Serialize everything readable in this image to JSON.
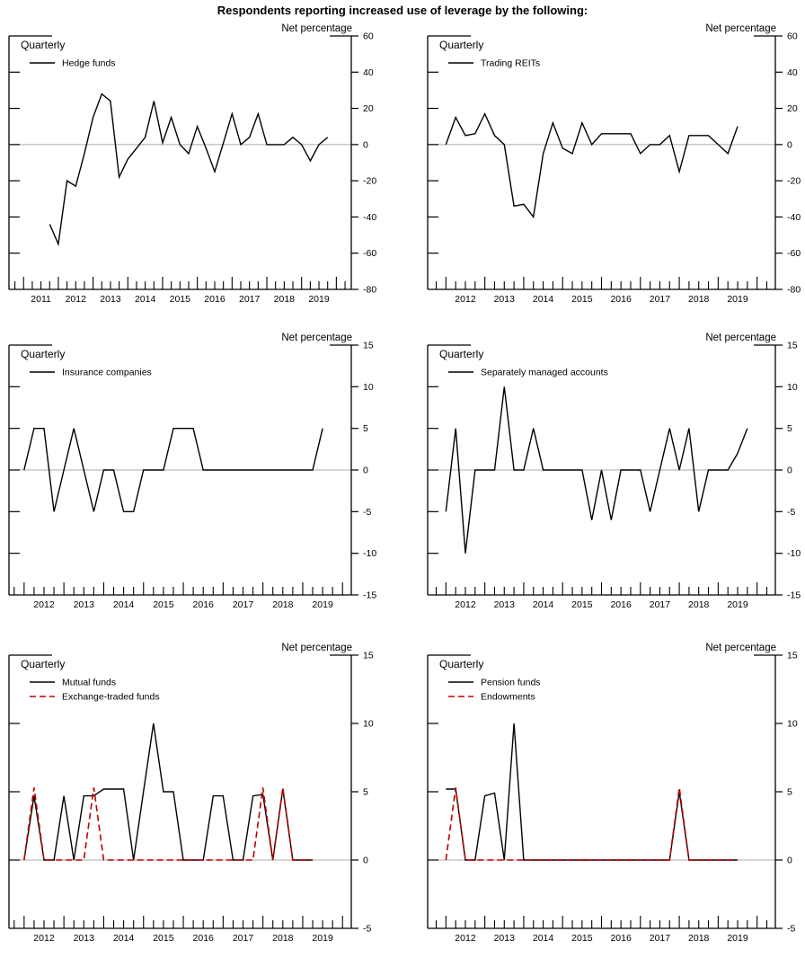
{
  "title": "Respondents reporting increased use of leverage by the following:",
  "net_percentage_label": "Net percentage",
  "frequency_label": "Quarterly",
  "colors": {
    "series_black": "#000000",
    "series_red": "#c00000",
    "zero_line": "#ababab",
    "axis": "#000000"
  },
  "chart_data": [
    {
      "type": "line",
      "panel": "hedge-funds",
      "xlim": [
        2010.58,
        2020.43
      ],
      "ylim": [
        -80,
        60
      ],
      "ytick": 20,
      "x_start": 2011.75,
      "x_step": 0.25,
      "year_labels": [
        "2011",
        "2012",
        "2013",
        "2014",
        "2015",
        "2016",
        "2017",
        "2018",
        "2019"
      ],
      "series": [
        {
          "name": "Hedge funds",
          "color": "black",
          "dash": "solid",
          "values": [
            -44,
            -55,
            -20,
            -23,
            -5,
            15,
            28,
            24,
            -18,
            -8,
            -2,
            4,
            24,
            1,
            15,
            0,
            -5,
            10,
            -2,
            -15,
            1,
            17,
            0,
            4,
            17,
            0,
            0,
            0,
            4,
            0,
            -9,
            0,
            4
          ]
        }
      ]
    },
    {
      "type": "line",
      "panel": "trading-reits",
      "xlim": [
        2011.53,
        2020.47
      ],
      "ylim": [
        -80,
        60
      ],
      "ytick": 20,
      "x_start": 2012.0,
      "x_step": 0.25,
      "year_labels": [
        "2012",
        "2013",
        "2014",
        "2015",
        "2016",
        "2017",
        "2018",
        "2019"
      ],
      "series": [
        {
          "name": "Trading REITs",
          "color": "black",
          "dash": "solid",
          "values": [
            0,
            15,
            5,
            6,
            17,
            5,
            0,
            -34,
            -33,
            -40,
            -5,
            12,
            -2,
            -5,
            12,
            0,
            6,
            6,
            6,
            6,
            -5,
            0,
            0,
            5,
            -15,
            5,
            5,
            5,
            0,
            -5,
            10
          ]
        }
      ]
    },
    {
      "type": "line",
      "panel": "insurance-companies",
      "xlim": [
        2011.62,
        2020.22
      ],
      "ylim": [
        -15,
        15
      ],
      "ytick": 5,
      "x_start": 2012.0,
      "x_step": 0.25,
      "year_labels": [
        "2012",
        "2013",
        "2014",
        "2015",
        "2016",
        "2017",
        "2018",
        "2019"
      ],
      "series": [
        {
          "name": "Insurance companies",
          "color": "black",
          "dash": "solid",
          "values": [
            0,
            5,
            5,
            -5,
            0,
            5,
            0,
            -5,
            0,
            0,
            -5,
            -5,
            0,
            0,
            0,
            5,
            5,
            5,
            0,
            0,
            0,
            0,
            0,
            0,
            0,
            0,
            0,
            0,
            0,
            0,
            5
          ]
        }
      ]
    },
    {
      "type": "line",
      "panel": "separately-managed-accounts",
      "xlim": [
        2011.53,
        2020.47
      ],
      "ylim": [
        -15,
        15
      ],
      "ytick": 5,
      "x_start": 2012.0,
      "x_step": 0.25,
      "year_labels": [
        "2012",
        "2013",
        "2014",
        "2015",
        "2016",
        "2017",
        "2018",
        "2019"
      ],
      "series": [
        {
          "name": "Separately managed accounts",
          "color": "black",
          "dash": "solid",
          "values": [
            -5,
            5,
            -10,
            0,
            0,
            0,
            10,
            0,
            0,
            5,
            0,
            0,
            0,
            0,
            0,
            -6,
            0,
            -6,
            0,
            0,
            0,
            -5,
            0,
            5,
            0,
            5,
            -5,
            0,
            0,
            0,
            2,
            5
          ]
        }
      ]
    },
    {
      "type": "line",
      "panel": "mutual-funds-etf",
      "xlim": [
        2011.62,
        2020.22
      ],
      "ylim": [
        -5,
        15
      ],
      "ytick": 5,
      "x_start": 2012.0,
      "x_step": 0.25,
      "year_labels": [
        "2012",
        "2013",
        "2014",
        "2015",
        "2016",
        "2017",
        "2018",
        "2019"
      ],
      "series": [
        {
          "name": "Mutual funds",
          "color": "black",
          "dash": "solid",
          "values": [
            0,
            4.7,
            0,
            0,
            4.7,
            0,
            4.7,
            4.7,
            5.2,
            5.2,
            5.2,
            0,
            5,
            10,
            5,
            5,
            0,
            0,
            0,
            4.7,
            4.7,
            0,
            0,
            4.7,
            4.8,
            0,
            5.2,
            0,
            0,
            0
          ]
        },
        {
          "name": "Exchange-traded funds",
          "color": "red",
          "dash": "dashed",
          "values": [
            0,
            5.3,
            0,
            0,
            0,
            0,
            0,
            5.3,
            0,
            0,
            0,
            0,
            0,
            0,
            0,
            0,
            0,
            0,
            0,
            0,
            0,
            0,
            0,
            0,
            5.3,
            0,
            5.3,
            0,
            0,
            0
          ]
        }
      ]
    },
    {
      "type": "line",
      "panel": "pension-funds-endowments",
      "xlim": [
        2011.53,
        2020.47
      ],
      "ylim": [
        -5,
        15
      ],
      "ytick": 5,
      "x_start": 2012.0,
      "x_step": 0.25,
      "year_labels": [
        "2012",
        "2013",
        "2014",
        "2015",
        "2016",
        "2017",
        "2018",
        "2019"
      ],
      "series": [
        {
          "name": "Pension funds",
          "color": "black",
          "dash": "solid",
          "values": [
            5.2,
            5.2,
            0,
            0,
            4.7,
            4.9,
            0,
            10,
            0,
            0,
            0,
            0,
            0,
            0,
            0,
            0,
            0,
            0,
            0,
            0,
            0,
            0,
            0,
            0,
            5,
            0,
            0,
            0,
            0,
            0,
            0
          ]
        },
        {
          "name": "Endowments",
          "color": "red",
          "dash": "dashed",
          "values": [
            0,
            5.3,
            0,
            0,
            0,
            0,
            0,
            0,
            0,
            0,
            0,
            0,
            0,
            0,
            0,
            0,
            0,
            0,
            0,
            0,
            0,
            0,
            0,
            0,
            5.3,
            0,
            0,
            0,
            0,
            0,
            0
          ]
        }
      ]
    }
  ]
}
